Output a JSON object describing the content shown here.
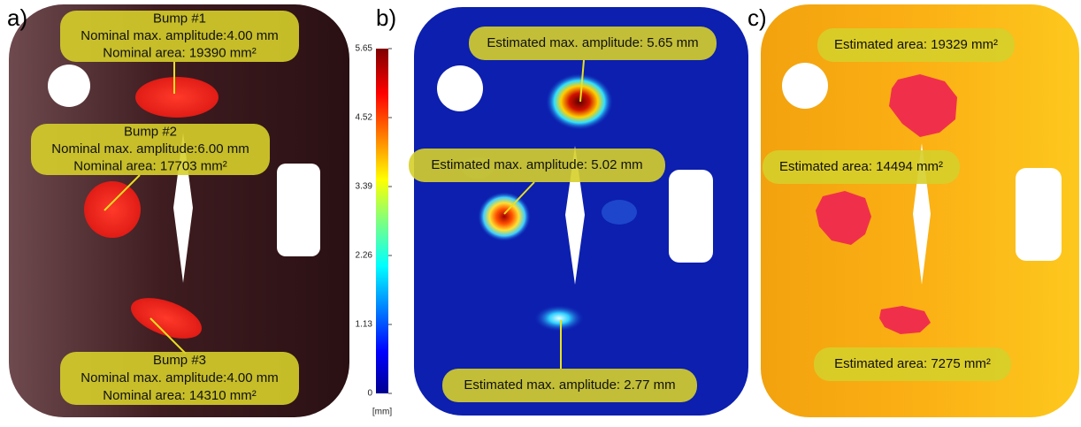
{
  "panels": [
    {
      "letter": "a)",
      "labels": [
        {
          "lines": [
            "Bump #1",
            "Nominal max. amplitude:4.00 mm",
            "Nominal area: 19390 mm²"
          ]
        },
        {
          "lines": [
            "Bump #2",
            "Nominal max. amplitude:6.00 mm",
            "Nominal area: 17703 mm²"
          ]
        },
        {
          "lines": [
            "Bump #3",
            "Nominal max. amplitude:4.00 mm",
            "Nominal area: 14310 mm²"
          ]
        }
      ]
    },
    {
      "letter": "b)",
      "labels": [
        {
          "lines": [
            "Estimated max. amplitude: 5.65 mm"
          ]
        },
        {
          "lines": [
            "Estimated max. amplitude: 5.02 mm"
          ]
        },
        {
          "lines": [
            "Estimated max. amplitude: 2.77 mm"
          ]
        }
      ],
      "colorbar": {
        "ticks": [
          0,
          1.13,
          2.26,
          3.39,
          4.52,
          5.65
        ],
        "unit": "[mm]"
      }
    },
    {
      "letter": "c)",
      "labels": [
        {
          "lines": [
            "Estimated area: 19329 mm²"
          ]
        },
        {
          "lines": [
            "Estimated area: 14494 mm²"
          ]
        },
        {
          "lines": [
            "Estimated area: 7275 mm²"
          ]
        }
      ]
    }
  ]
}
